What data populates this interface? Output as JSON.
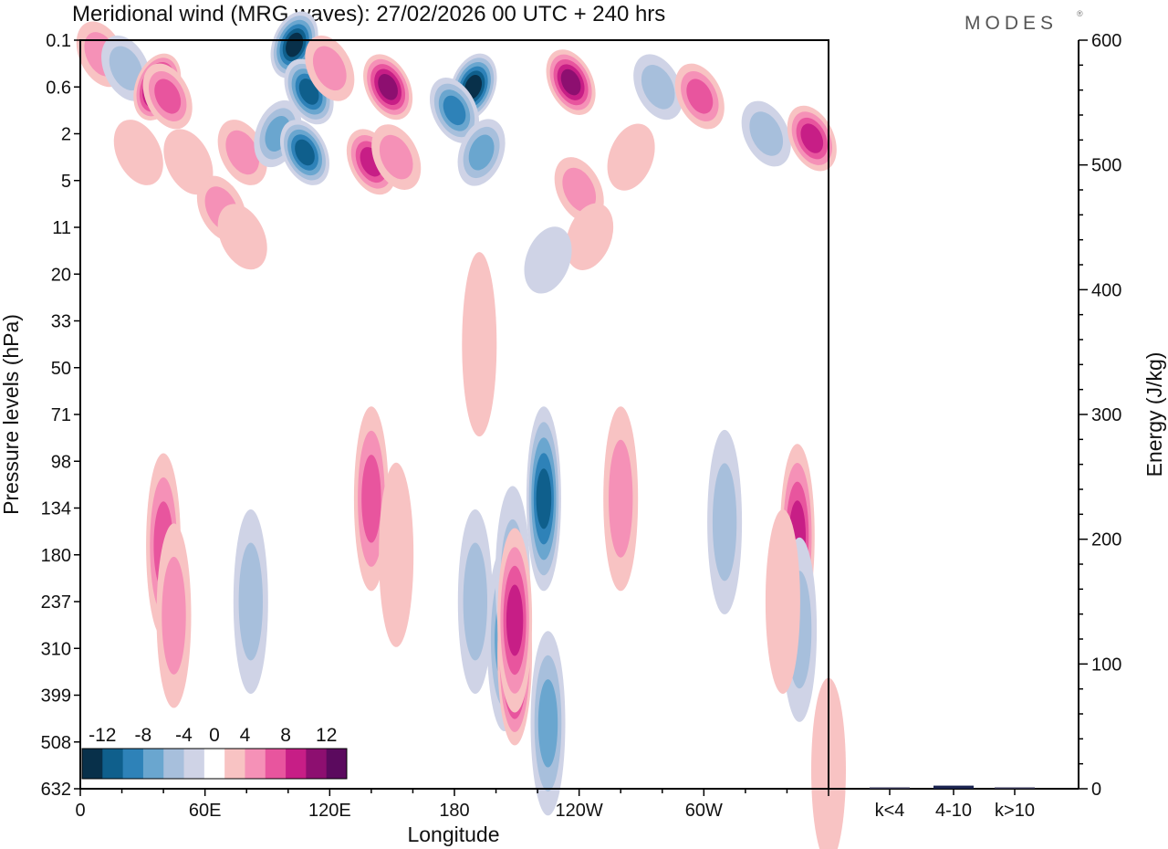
{
  "brand": "MODES",
  "brand_mark": "®",
  "chart_data": [
    {
      "type": "heatmap",
      "title": "Meridional wind (MRG waves):  27/02/2026  00 UTC  + 240 hrs",
      "xlabel": "Longitude",
      "ylabel": "Pressure levels (hPa)",
      "x_ticks": [
        "0",
        "60E",
        "120E",
        "180",
        "120W",
        "60W"
      ],
      "x_tick_values": [
        0,
        60,
        120,
        180,
        240,
        300
      ],
      "xlim": [
        0,
        360
      ],
      "y_ticks": [
        "0.1",
        "0.6",
        "2",
        "5",
        "11",
        "20",
        "33",
        "50",
        "71",
        "98",
        "134",
        "180",
        "237",
        "310",
        "399",
        "508",
        "632"
      ],
      "y_axis": "categorical pressure levels, 0.1 hPa at top, 632 hPa at bottom",
      "colorbar": {
        "tick_labels": [
          "-12",
          "-8",
          "-4",
          "0",
          "4",
          "8",
          "12"
        ],
        "levels": [
          -14,
          -12,
          -10,
          -8,
          -6,
          -4,
          -2,
          2,
          4,
          6,
          8,
          10,
          12,
          14
        ],
        "colors": [
          "#08304a",
          "#0f5f8c",
          "#2e82b8",
          "#6aa6cf",
          "#a7bfdc",
          "#cfd3e6",
          "#ffffff",
          "#f8c3c3",
          "#f591b7",
          "#e8559e",
          "#c71e86",
          "#8d0f70",
          "#5b0a5e"
        ],
        "location": "bottom-left"
      },
      "cells": [
        {
          "lon": 10,
          "lev": 0.3,
          "v": 5
        },
        {
          "lon": 22,
          "lev": 0.6,
          "v": -6
        },
        {
          "lon": 37,
          "lev": 1.0,
          "v": 13
        },
        {
          "lon": 42,
          "lev": 1.2,
          "v": 8
        },
        {
          "lon": 28,
          "lev": 2.4,
          "v": 4
        },
        {
          "lon": 52,
          "lev": 2.6,
          "v": 4
        },
        {
          "lon": 78,
          "lev": 2.4,
          "v": 5
        },
        {
          "lon": 95,
          "lev": 2.0,
          "v": -8
        },
        {
          "lon": 103,
          "lev": 0.1,
          "v": -13
        },
        {
          "lon": 110,
          "lev": 1.1,
          "v": -11
        },
        {
          "lon": 108,
          "lev": 2.4,
          "v": -12
        },
        {
          "lon": 120,
          "lev": 0.6,
          "v": 6
        },
        {
          "lon": 148,
          "lev": 1.0,
          "v": 12
        },
        {
          "lon": 140,
          "lev": 2.6,
          "v": 10
        },
        {
          "lon": 152,
          "lev": 2.5,
          "v": 6
        },
        {
          "lon": 189,
          "lev": 1.0,
          "v": -14
        },
        {
          "lon": 180,
          "lev": 1.5,
          "v": -10
        },
        {
          "lon": 193,
          "lev": 2.4,
          "v": -8
        },
        {
          "lon": 236,
          "lev": 0.9,
          "v": 12
        },
        {
          "lon": 278,
          "lev": 1.0,
          "v": -6
        },
        {
          "lon": 298,
          "lev": 1.2,
          "v": 8
        },
        {
          "lon": 330,
          "lev": 2.0,
          "v": -6
        },
        {
          "lon": 352,
          "lev": 2.1,
          "v": 9
        },
        {
          "lon": 240,
          "lev": 3.2,
          "v": 5
        },
        {
          "lon": 265,
          "lev": 2.5,
          "v": 4
        },
        {
          "lon": 68,
          "lev": 3.6,
          "v": 5
        },
        {
          "lon": 78,
          "lev": 4.2,
          "v": 4
        },
        {
          "lon": 245,
          "lev": 4.2,
          "v": 4
        },
        {
          "lon": 225,
          "lev": 4.7,
          "v": -4
        },
        {
          "lon": 192,
          "lev": 6.5,
          "v": 4
        },
        {
          "lon": 40,
          "lev": 10.8,
          "v": 8
        },
        {
          "lon": 45,
          "lev": 12.3,
          "v": 6
        },
        {
          "lon": 82,
          "lev": 12.0,
          "v": -6
        },
        {
          "lon": 140,
          "lev": 9.8,
          "v": 8
        },
        {
          "lon": 152,
          "lev": 11.0,
          "v": 4
        },
        {
          "lon": 190,
          "lev": 12.0,
          "v": -6
        },
        {
          "lon": 204,
          "lev": 12.8,
          "v": -8
        },
        {
          "lon": 208,
          "lev": 11.5,
          "v": -6
        },
        {
          "lon": 209,
          "lev": 13.1,
          "v": 14
        },
        {
          "lon": 209,
          "lev": 12.4,
          "v": 10
        },
        {
          "lon": 223,
          "lev": 9.8,
          "v": -12
        },
        {
          "lon": 225,
          "lev": 14.6,
          "v": -8
        },
        {
          "lon": 260,
          "lev": 9.8,
          "v": 6
        },
        {
          "lon": 310,
          "lev": 10.3,
          "v": -6
        },
        {
          "lon": 345,
          "lev": 10.6,
          "v": 9
        },
        {
          "lon": 346,
          "lev": 12.6,
          "v": -6
        },
        {
          "lon": 338,
          "lev": 12.0,
          "v": 4
        },
        {
          "lon": 360,
          "lev": 15.6,
          "v": 4
        }
      ]
    },
    {
      "type": "bar",
      "ylabel": "Energy (J/kg)",
      "ylim": [
        0,
        600
      ],
      "y_ticks": [
        "0",
        "100",
        "200",
        "300",
        "400",
        "500",
        "600"
      ],
      "categories": [
        "k<4",
        "4-10",
        "k>10"
      ],
      "values": [
        0.5,
        2.5,
        0.5
      ]
    }
  ]
}
